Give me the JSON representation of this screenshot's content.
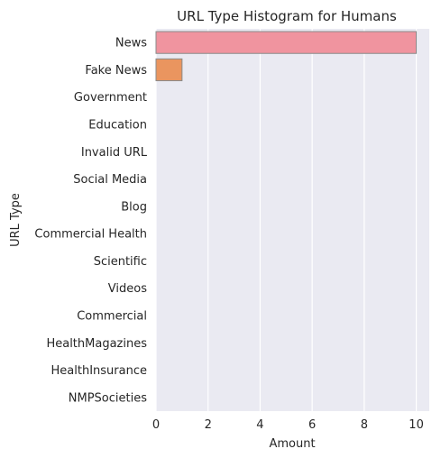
{
  "chart_data": {
    "type": "bar",
    "orientation": "horizontal",
    "title": "URL Type Histogram for Humans",
    "xlabel": "Amount",
    "ylabel": "URL Type",
    "categories": [
      "News",
      "Fake News",
      "Government",
      "Education",
      "Invalid URL",
      "Social Media",
      "Blog",
      "Commercial Health",
      "Scientific",
      "Videos",
      "Commercial",
      "HealthMagazines",
      "HealthInsurance",
      "NMPSocieties"
    ],
    "values": [
      10,
      1,
      0,
      0,
      0,
      0,
      0,
      0,
      0,
      0,
      0,
      0,
      0,
      0
    ],
    "colors": [
      "#f0949f",
      "#ea955f",
      "#c99b3e",
      "#a6a23e",
      "#7fab3e",
      "#3eb048",
      "#3fae8b",
      "#41abaa",
      "#42a8c0",
      "#4aa0df",
      "#9d91e9",
      "#d685e8",
      "#ec7fcb",
      "#ef87a8"
    ],
    "xticks": [
      0,
      2,
      4,
      6,
      8,
      10
    ],
    "xlim": [
      0,
      10.5
    ],
    "grid": true,
    "background": "#eaeaf2"
  }
}
